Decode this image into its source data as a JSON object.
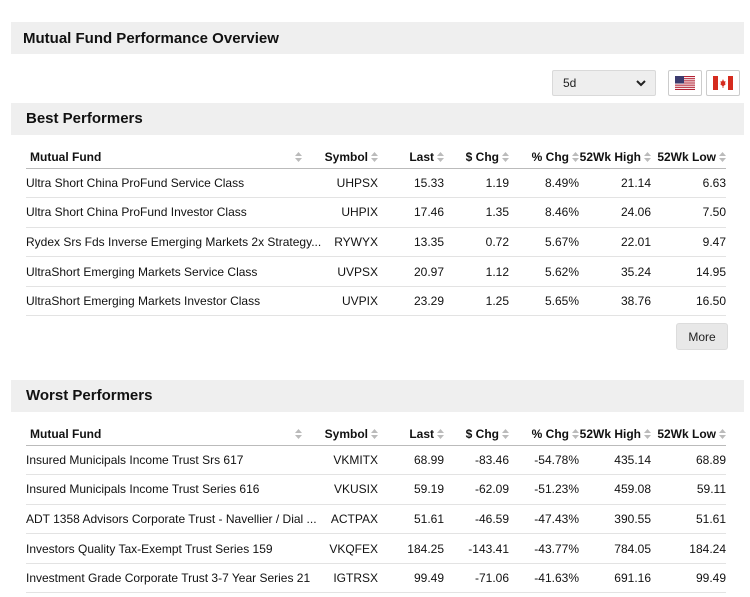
{
  "page": {
    "title": "Mutual Fund Performance Overview"
  },
  "controls": {
    "period": "5d",
    "icons": {
      "dropdown": "chevron-down-icon",
      "us": "us-flag-icon",
      "ca": "canada-flag-icon"
    }
  },
  "columns": [
    "Mutual Fund",
    "Symbol",
    "Last",
    "$ Chg",
    "% Chg",
    "52Wk High",
    "52Wk Low"
  ],
  "best": {
    "title": "Best Performers",
    "rows": [
      {
        "name": "Ultra Short China ProFund Service Class",
        "symbol": "UHPSX",
        "last": "15.33",
        "chg": "1.19",
        "pct": "8.49%",
        "high": "21.14",
        "low": "6.63"
      },
      {
        "name": "Ultra Short China ProFund Investor Class",
        "symbol": "UHPIX",
        "last": "17.46",
        "chg": "1.35",
        "pct": "8.46%",
        "high": "24.06",
        "low": "7.50"
      },
      {
        "name": "Rydex Srs Fds Inverse Emerging Markets 2x Strategy...",
        "symbol": "RYWYX",
        "last": "13.35",
        "chg": "0.72",
        "pct": "5.67%",
        "high": "22.01",
        "low": "9.47"
      },
      {
        "name": "UltraShort Emerging Markets Service Class",
        "symbol": "UVPSX",
        "last": "20.97",
        "chg": "1.12",
        "pct": "5.62%",
        "high": "35.24",
        "low": "14.95"
      },
      {
        "name": "UltraShort Emerging Markets Investor Class",
        "symbol": "UVPIX",
        "last": "23.29",
        "chg": "1.25",
        "pct": "5.65%",
        "high": "38.76",
        "low": "16.50"
      }
    ],
    "more_label": "More"
  },
  "worst": {
    "title": "Worst Performers",
    "rows": [
      {
        "name": "Insured Municipals Income Trust Srs 617",
        "symbol": "VKMITX",
        "last": "68.99",
        "chg": "-83.46",
        "pct": "-54.78%",
        "high": "435.14",
        "low": "68.89"
      },
      {
        "name": "Insured Municipals Income Trust Series 616",
        "symbol": "VKUSIX",
        "last": "59.19",
        "chg": "-62.09",
        "pct": "-51.23%",
        "high": "459.08",
        "low": "59.11"
      },
      {
        "name": "ADT 1358 Advisors Corporate Trust - Navellier / Dial ...",
        "symbol": "ACTPAX",
        "last": "51.61",
        "chg": "-46.59",
        "pct": "-47.43%",
        "high": "390.55",
        "low": "51.61"
      },
      {
        "name": "Investors Quality Tax-Exempt Trust Series 159",
        "symbol": "VKQFEX",
        "last": "184.25",
        "chg": "-143.41",
        "pct": "-43.77%",
        "high": "784.05",
        "low": "184.24"
      },
      {
        "name": "Investment Grade Corporate Trust 3-7 Year Series 21",
        "symbol": "IGTRSX",
        "last": "99.49",
        "chg": "-71.06",
        "pct": "-41.63%",
        "high": "691.16",
        "low": "99.49"
      }
    ]
  }
}
